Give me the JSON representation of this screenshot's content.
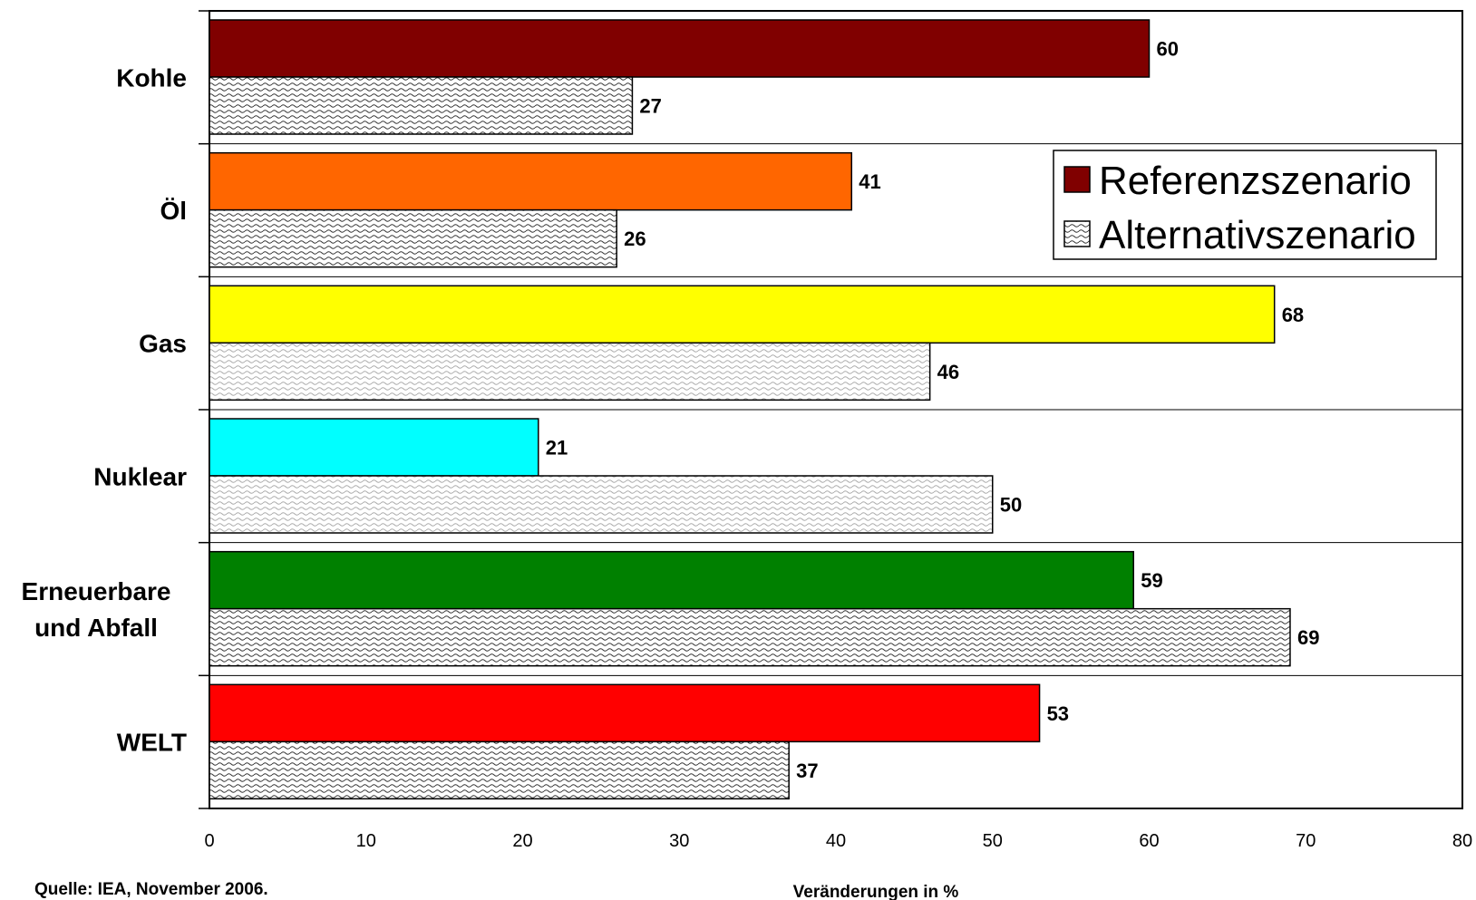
{
  "chart_data": {
    "type": "bar",
    "orientation": "horizontal",
    "categories": [
      "Kohle",
      "Öl",
      "Gas",
      "Nuklear",
      "Erneuerbare und Abfall",
      "WELT"
    ],
    "category_lines": [
      [
        "Kohle"
      ],
      [
        "Öl"
      ],
      [
        "Gas"
      ],
      [
        "Nuklear"
      ],
      [
        "Erneuerbare",
        "und Abfall"
      ],
      [
        "WELT"
      ]
    ],
    "series": [
      {
        "name": "Referenzszenario",
        "values": [
          60,
          41,
          68,
          21,
          59,
          53
        ],
        "labels": [
          "60",
          "41",
          "68",
          "21",
          "59",
          "53"
        ],
        "colors": [
          "#800000",
          "#ff6600",
          "#ffff00",
          "#00ffff",
          "#008000",
          "#ff0000"
        ],
        "legend_color": "#800000"
      },
      {
        "name": "Alternativszenario",
        "values": [
          27,
          26,
          46,
          50,
          69,
          37
        ],
        "labels": [
          "27",
          "26",
          "46",
          "50",
          "69",
          "37"
        ],
        "pattern": "wave-hatch",
        "pattern_density": [
          "dense",
          "dense",
          "light",
          "light",
          "dense",
          "dense"
        ]
      }
    ],
    "xlim": [
      0,
      80
    ],
    "xticks": [
      "0",
      "10",
      "20",
      "30",
      "40",
      "50",
      "60",
      "70",
      "80"
    ],
    "xlabel": "Veränderungen in %",
    "grid": "horizontal category separators",
    "legend_position": "top-right"
  },
  "source_note": "Quelle: IEA, November 2006."
}
